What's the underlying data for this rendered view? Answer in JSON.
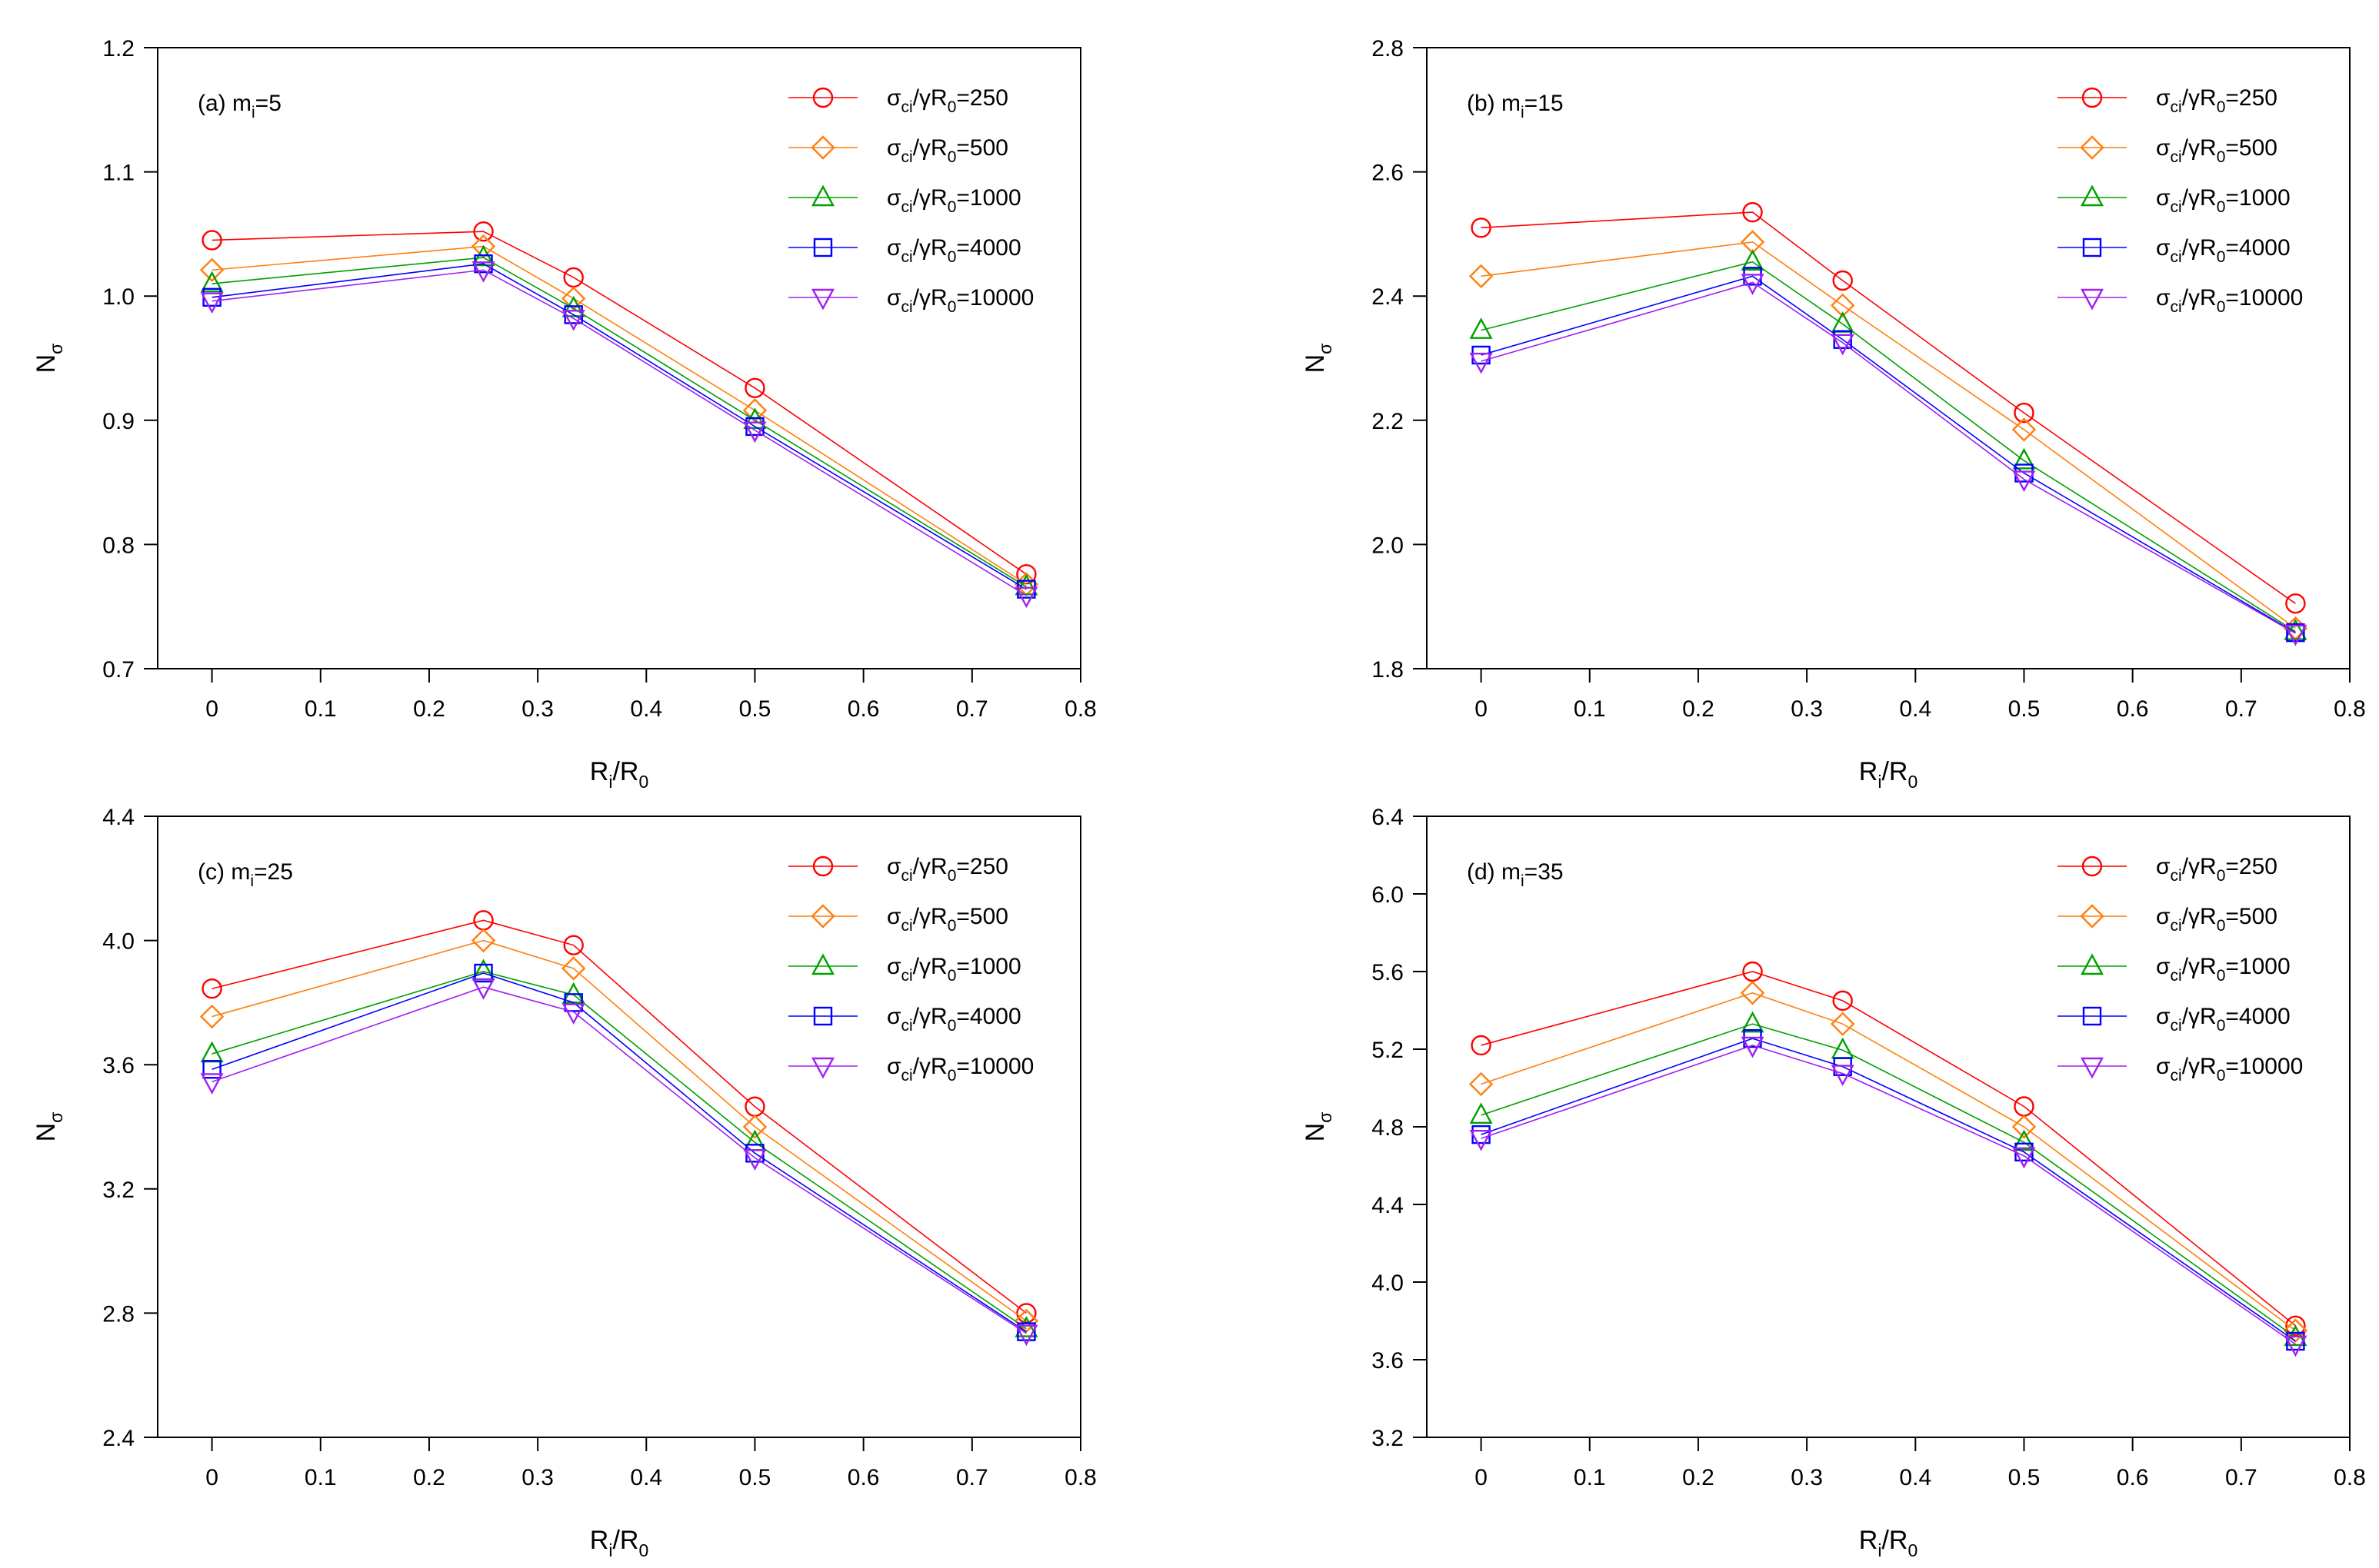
{
  "figure": {
    "legend_prefix": "σ",
    "legend_sub1": "ci",
    "legend_mid": "/γR",
    "legend_sub2": "0"
  },
  "chart_data": [
    {
      "type": "line",
      "panel_label": "(a) m",
      "panel_sub": "i",
      "panel_value": "=5",
      "xlabel_main": "R",
      "xlabel_sub1": "i",
      "xlabel_mid": "/R",
      "xlabel_sub2": "0",
      "ylabel_main": "N",
      "ylabel_sub": "σ",
      "x": [
        0,
        0.25,
        0.333,
        0.5,
        0.75
      ],
      "xlim": [
        -0.05,
        0.8
      ],
      "ylim": [
        0.7,
        1.2
      ],
      "xticks": [
        "0",
        "0.1",
        "0.2",
        "0.3",
        "0.4",
        "0.5",
        "0.6",
        "0.7",
        "0.8"
      ],
      "yticks": [
        "0.7",
        "0.8",
        "0.9",
        "1.0",
        "1.1",
        "1.2"
      ],
      "legend_position": "top-right",
      "series": [
        {
          "name": "=250",
          "marker": "circle",
          "color": "#ff0000",
          "values": [
            1.045,
            1.052,
            1.015,
            0.926,
            0.776
          ]
        },
        {
          "name": "=500",
          "marker": "diamond",
          "color": "#ff7f0e",
          "values": [
            1.021,
            1.04,
            0.998,
            0.908,
            0.768
          ]
        },
        {
          "name": "=1000",
          "marker": "triangle-up",
          "color": "#00a000",
          "values": [
            1.01,
            1.031,
            0.99,
            0.9,
            0.766
          ]
        },
        {
          "name": "=4000",
          "marker": "square",
          "color": "#0000ff",
          "values": [
            0.999,
            1.026,
            0.985,
            0.895,
            0.764
          ]
        },
        {
          "name": "=10000",
          "marker": "triangle-down",
          "color": "#a020f0",
          "values": [
            0.996,
            1.021,
            0.982,
            0.892,
            0.759
          ]
        }
      ]
    },
    {
      "type": "line",
      "panel_label": "(b) m",
      "panel_sub": "i",
      "panel_value": "=15",
      "xlabel_main": "R",
      "xlabel_sub1": "i",
      "xlabel_mid": "/R",
      "xlabel_sub2": "0",
      "ylabel_main": "N",
      "ylabel_sub": "σ",
      "x": [
        0,
        0.25,
        0.333,
        0.5,
        0.75
      ],
      "xlim": [
        -0.05,
        0.8
      ],
      "ylim": [
        1.8,
        2.8
      ],
      "xticks": [
        "0",
        "0.1",
        "0.2",
        "0.3",
        "0.4",
        "0.5",
        "0.6",
        "0.7",
        "0.8"
      ],
      "yticks": [
        "1.8",
        "2.0",
        "2.2",
        "2.4",
        "2.6",
        "2.8"
      ],
      "legend_position": "top-right",
      "series": [
        {
          "name": "=250",
          "marker": "circle",
          "color": "#ff0000",
          "values": [
            2.51,
            2.535,
            2.425,
            2.212,
            1.905
          ]
        },
        {
          "name": "=500",
          "marker": "diamond",
          "color": "#ff7f0e",
          "values": [
            2.432,
            2.487,
            2.385,
            2.185,
            1.865
          ]
        },
        {
          "name": "=1000",
          "marker": "triangle-up",
          "color": "#00a000",
          "values": [
            2.345,
            2.455,
            2.355,
            2.135,
            1.86
          ]
        },
        {
          "name": "=4000",
          "marker": "square",
          "color": "#0000ff",
          "values": [
            2.305,
            2.432,
            2.33,
            2.115,
            1.858
          ]
        },
        {
          "name": "=10000",
          "marker": "triangle-down",
          "color": "#a020f0",
          "values": [
            2.295,
            2.422,
            2.325,
            2.105,
            1.857
          ]
        }
      ]
    },
    {
      "type": "line",
      "panel_label": "(c) m",
      "panel_sub": "i",
      "panel_value": "=25",
      "xlabel_main": "R",
      "xlabel_sub1": "i",
      "xlabel_mid": "/R",
      "xlabel_sub2": "0",
      "ylabel_main": "N",
      "ylabel_sub": "σ",
      "x": [
        0,
        0.25,
        0.333,
        0.5,
        0.75
      ],
      "xlim": [
        -0.05,
        0.8
      ],
      "ylim": [
        2.4,
        4.4
      ],
      "xticks": [
        "0",
        "0.1",
        "0.2",
        "0.3",
        "0.4",
        "0.5",
        "0.6",
        "0.7",
        "0.8"
      ],
      "yticks": [
        "2.4",
        "2.8",
        "3.2",
        "3.6",
        "4.0",
        "4.4"
      ],
      "legend_position": "top-right",
      "series": [
        {
          "name": "=250",
          "marker": "circle",
          "color": "#ff0000",
          "values": [
            3.845,
            4.065,
            3.985,
            3.465,
            2.8
          ]
        },
        {
          "name": "=500",
          "marker": "diamond",
          "color": "#ff7f0e",
          "values": [
            3.755,
            4.0,
            3.91,
            3.4,
            2.775
          ]
        },
        {
          "name": "=1000",
          "marker": "triangle-up",
          "color": "#00a000",
          "values": [
            3.635,
            3.9,
            3.825,
            3.35,
            2.75
          ]
        },
        {
          "name": "=4000",
          "marker": "square",
          "color": "#0000ff",
          "values": [
            3.585,
            3.895,
            3.8,
            3.315,
            2.74
          ]
        },
        {
          "name": "=10000",
          "marker": "triangle-down",
          "color": "#a020f0",
          "values": [
            3.545,
            3.85,
            3.77,
            3.3,
            2.735
          ]
        }
      ]
    },
    {
      "type": "line",
      "panel_label": "(d) m",
      "panel_sub": "i",
      "panel_value": "=35",
      "xlabel_main": "R",
      "xlabel_sub1": "i",
      "xlabel_mid": "/R",
      "xlabel_sub2": "0",
      "ylabel_main": "N",
      "ylabel_sub": "σ",
      "x": [
        0,
        0.25,
        0.333,
        0.5,
        0.75
      ],
      "xlim": [
        -0.05,
        0.8
      ],
      "ylim": [
        3.2,
        6.4
      ],
      "xticks": [
        "0",
        "0.1",
        "0.2",
        "0.3",
        "0.4",
        "0.5",
        "0.6",
        "0.7",
        "0.8"
      ],
      "yticks": [
        "3.2",
        "3.6",
        "4.0",
        "4.4",
        "4.8",
        "5.2",
        "5.6",
        "6.0",
        "6.4"
      ],
      "legend_position": "top-right",
      "series": [
        {
          "name": "=250",
          "marker": "circle",
          "color": "#ff0000",
          "values": [
            5.22,
            5.6,
            5.45,
            4.905,
            3.775
          ]
        },
        {
          "name": "=500",
          "marker": "diamond",
          "color": "#ff7f0e",
          "values": [
            5.02,
            5.49,
            5.33,
            4.8,
            3.75
          ]
        },
        {
          "name": "=1000",
          "marker": "triangle-up",
          "color": "#00a000",
          "values": [
            4.86,
            5.33,
            5.195,
            4.72,
            3.715
          ]
        },
        {
          "name": "=4000",
          "marker": "square",
          "color": "#0000ff",
          "values": [
            4.76,
            5.255,
            5.11,
            4.67,
            3.695
          ]
        },
        {
          "name": "=10000",
          "marker": "triangle-down",
          "color": "#a020f0",
          "values": [
            4.74,
            5.22,
            5.075,
            4.65,
            3.68
          ]
        }
      ]
    }
  ]
}
